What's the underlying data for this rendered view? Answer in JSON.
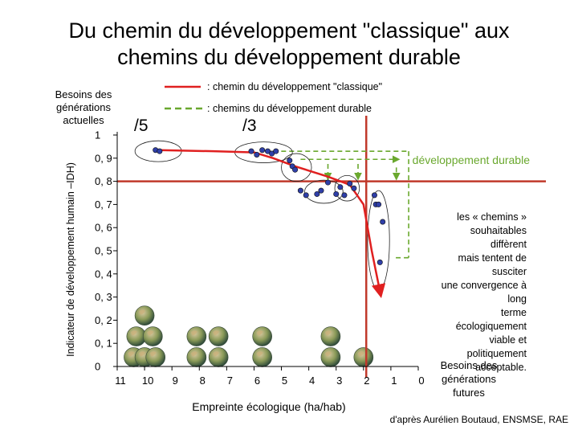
{
  "title_line1": "Du chemin du développement \"classique\" aux",
  "title_line2": "chemins du développement durable",
  "left_top_label": [
    "Besoins des",
    "générations",
    "actuelles"
  ],
  "right_bottom_label": [
    "Besoins des",
    "générations",
    "futures"
  ],
  "annotation_note": [
    "les « chemins »",
    "souhaitables diffèrent",
    "mais tentent de susciter",
    "une convergence à long",
    "terme écologiquement",
    "viable et politiquement",
    "acceptable."
  ],
  "developpement_durable_label": "développement durable",
  "fraction_labels": [
    "/5",
    "/3"
  ],
  "source": "d'après Aurélien Boutaud, ENSMSE, RAE",
  "colors": {
    "classic_path": "#e02020",
    "sustainable_path": "#6aa82e",
    "threshold_lines": "#c0392b",
    "points": "#2f3fa8"
  },
  "icons": [
    "globe-icon"
  ],
  "chart_data": {
    "type": "scatter",
    "title": "",
    "xlabel": "Empreinte écologique (ha/hab)",
    "ylabel": "Indicateur de développement humain –IDH)",
    "xlim": [
      11,
      0
    ],
    "ylim": [
      0,
      1
    ],
    "x_reversed": true,
    "x_ticks": [
      "11",
      "10",
      "9",
      "8",
      "7",
      "6",
      "5",
      "4",
      "3",
      "2",
      "1",
      "0"
    ],
    "x_tick_values": [
      11,
      10,
      9,
      8,
      7,
      6,
      5,
      4,
      3,
      2,
      1,
      0
    ],
    "y_ticks": [
      "0",
      "0, 1",
      "0, 2",
      "0, 3",
      "0, 4",
      "0, 5",
      "0, 6",
      "0, 7",
      "0, 8",
      "0, 9",
      "1"
    ],
    "y_tick_values": [
      0,
      0.1,
      0.2,
      0.3,
      0.4,
      0.5,
      0.6,
      0.7,
      0.8,
      0.9,
      1
    ],
    "thresholds": {
      "x": 1.9,
      "y": 0.8
    },
    "grid": false,
    "legend_placement": "top",
    "series": [
      {
        "name": ": chemin du développement \"classique\"",
        "kind": "line",
        "x": [
          9.5,
          7.5,
          6.0,
          5.3,
          4.5,
          3.3,
          2.5,
          2.0,
          1.7,
          1.4
        ],
        "y": [
          0.935,
          0.93,
          0.925,
          0.9,
          0.865,
          0.82,
          0.785,
          0.7,
          0.5,
          0.325
        ]
      },
      {
        "name": ": chemins du développement durable",
        "kind": "dashed-arrows"
      },
      {
        "name": "pays",
        "kind": "points",
        "x": [
          9.6,
          9.45,
          6.1,
          5.9,
          5.7,
          5.5,
          5.35,
          5.2,
          4.7,
          4.6,
          4.5,
          4.3,
          4.1,
          3.7,
          3.55,
          3.3,
          3.0,
          2.85,
          2.7,
          2.5,
          2.35,
          1.6,
          1.55,
          1.45,
          1.3,
          1.4
        ],
        "y": [
          0.935,
          0.93,
          0.93,
          0.915,
          0.935,
          0.93,
          0.92,
          0.93,
          0.89,
          0.865,
          0.85,
          0.76,
          0.74,
          0.745,
          0.76,
          0.795,
          0.745,
          0.775,
          0.74,
          0.79,
          0.77,
          0.74,
          0.7,
          0.7,
          0.625,
          0.45
        ]
      }
    ],
    "clusters": [
      {
        "cx": 9.5,
        "cy": 0.93,
        "rx": 0.85,
        "ry": 0.045
      },
      {
        "cx": 5.65,
        "cy": 0.925,
        "rx": 1.05,
        "ry": 0.045
      },
      {
        "cx": 4.45,
        "cy": 0.86,
        "rx": 0.55,
        "ry": 0.06
      },
      {
        "cx": 3.45,
        "cy": 0.755,
        "rx": 0.7,
        "ry": 0.05
      },
      {
        "cx": 2.6,
        "cy": 0.77,
        "rx": 0.45,
        "ry": 0.055
      },
      {
        "cx": 1.45,
        "cy": 0.545,
        "rx": 0.4,
        "ry": 0.215
      }
    ],
    "globes": [
      {
        "x": 10.0,
        "y": 0.22
      },
      {
        "x": 10.3,
        "y": 0.13
      },
      {
        "x": 9.7,
        "y": 0.13
      },
      {
        "x": 10.4,
        "y": 0.04
      },
      {
        "x": 10.0,
        "y": 0.04
      },
      {
        "x": 9.6,
        "y": 0.04
      },
      {
        "x": 8.1,
        "y": 0.13
      },
      {
        "x": 7.3,
        "y": 0.13
      },
      {
        "x": 8.1,
        "y": 0.04
      },
      {
        "x": 7.3,
        "y": 0.04
      },
      {
        "x": 5.7,
        "y": 0.13
      },
      {
        "x": 5.7,
        "y": 0.04
      },
      {
        "x": 3.2,
        "y": 0.13
      },
      {
        "x": 3.2,
        "y": 0.04
      },
      {
        "x": 2.0,
        "y": 0.04
      }
    ]
  }
}
